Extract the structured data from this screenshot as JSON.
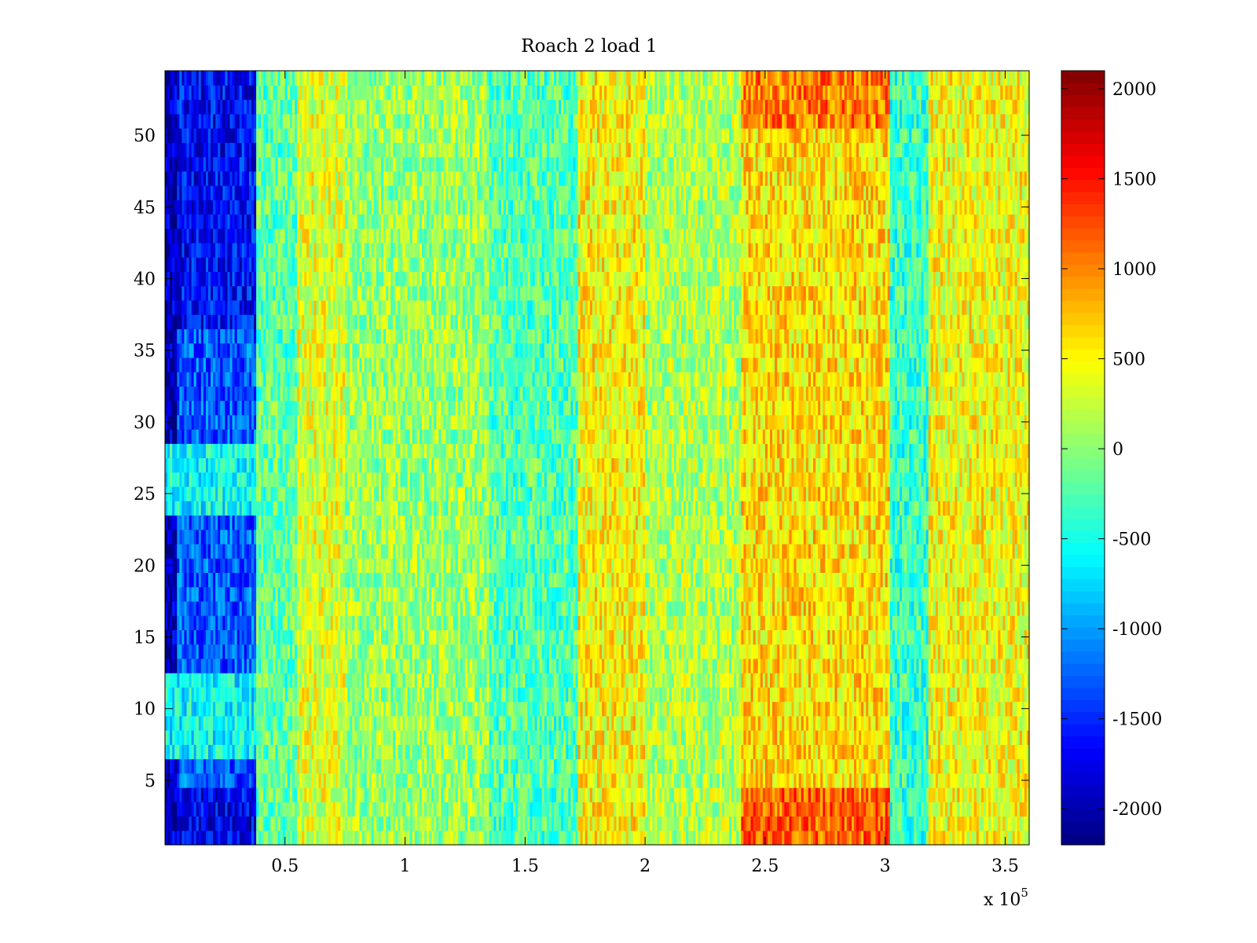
{
  "chart_data": {
    "type": "heatmap",
    "title": "Roach 2 load 1",
    "xlabel": "",
    "ylabel": "",
    "x_multiplier_label": "x 10",
    "x_multiplier_exponent": "5",
    "xlim": [
      0,
      360000
    ],
    "ylim": [
      0.5,
      54.5
    ],
    "x_ticks": [
      {
        "value": 50000,
        "label": "0.5"
      },
      {
        "value": 100000,
        "label": "1"
      },
      {
        "value": 150000,
        "label": "1.5"
      },
      {
        "value": 200000,
        "label": "2"
      },
      {
        "value": 250000,
        "label": "2.5"
      },
      {
        "value": 300000,
        "label": "3"
      },
      {
        "value": 350000,
        "label": "3.5"
      }
    ],
    "y_ticks": [
      {
        "value": 5,
        "label": "5"
      },
      {
        "value": 10,
        "label": "10"
      },
      {
        "value": 15,
        "label": "15"
      },
      {
        "value": 20,
        "label": "20"
      },
      {
        "value": 25,
        "label": "25"
      },
      {
        "value": 30,
        "label": "30"
      },
      {
        "value": 35,
        "label": "35"
      },
      {
        "value": 40,
        "label": "40"
      },
      {
        "value": 45,
        "label": "45"
      },
      {
        "value": 50,
        "label": "50"
      }
    ],
    "colorbar": {
      "colormap": "jet",
      "clim": [
        -2200,
        2100
      ],
      "ticks": [
        {
          "value": 2000,
          "label": "2000"
        },
        {
          "value": 1500,
          "label": "1500"
        },
        {
          "value": 1000,
          "label": "1000"
        },
        {
          "value": 500,
          "label": "500"
        },
        {
          "value": 0,
          "label": "0"
        },
        {
          "value": -500,
          "label": "-500"
        },
        {
          "value": -1000,
          "label": "-1000"
        },
        {
          "value": -1500,
          "label": "-1500"
        },
        {
          "value": -2000,
          "label": "-2000"
        }
      ]
    },
    "rows": 54,
    "column_segments": [
      {
        "x_start": 0,
        "x_end": 5000,
        "mean_value": -1950
      },
      {
        "x_start": 5000,
        "x_end": 38000,
        "mean_value": -1300
      },
      {
        "x_start": 38000,
        "x_end": 55000,
        "mean_value": -200
      },
      {
        "x_start": 55000,
        "x_end": 75000,
        "mean_value": 350
      },
      {
        "x_start": 75000,
        "x_end": 135000,
        "mean_value": 50
      },
      {
        "x_start": 135000,
        "x_end": 172000,
        "mean_value": -250
      },
      {
        "x_start": 172000,
        "x_end": 200000,
        "mean_value": 500
      },
      {
        "x_start": 200000,
        "x_end": 240000,
        "mean_value": 150
      },
      {
        "x_start": 240000,
        "x_end": 302000,
        "mean_value": 600
      },
      {
        "x_start": 302000,
        "x_end": 318000,
        "mean_value": -350
      },
      {
        "x_start": 318000,
        "x_end": 360000,
        "mean_value": 450
      }
    ],
    "row_notes": [
      {
        "y_start": 1,
        "y_end": 4,
        "x_start": 240000,
        "x_end": 302000,
        "mean_value": 1150
      },
      {
        "y_start": 51,
        "y_end": 54,
        "x_start": 240000,
        "x_end": 302000,
        "mean_value": 1050
      },
      {
        "y_start": 1,
        "y_end": 4,
        "x_start": 5000,
        "x_end": 38000,
        "mean_value": -1700
      },
      {
        "y_start": 37,
        "y_end": 54,
        "x_start": 5000,
        "x_end": 38000,
        "mean_value": -1650
      },
      {
        "y_start": 7,
        "y_end": 12,
        "x_start": 0,
        "x_end": 38000,
        "mean_value": -600
      },
      {
        "y_start": 24,
        "y_end": 28,
        "x_start": 0,
        "x_end": 38000,
        "mean_value": -550
      }
    ]
  }
}
